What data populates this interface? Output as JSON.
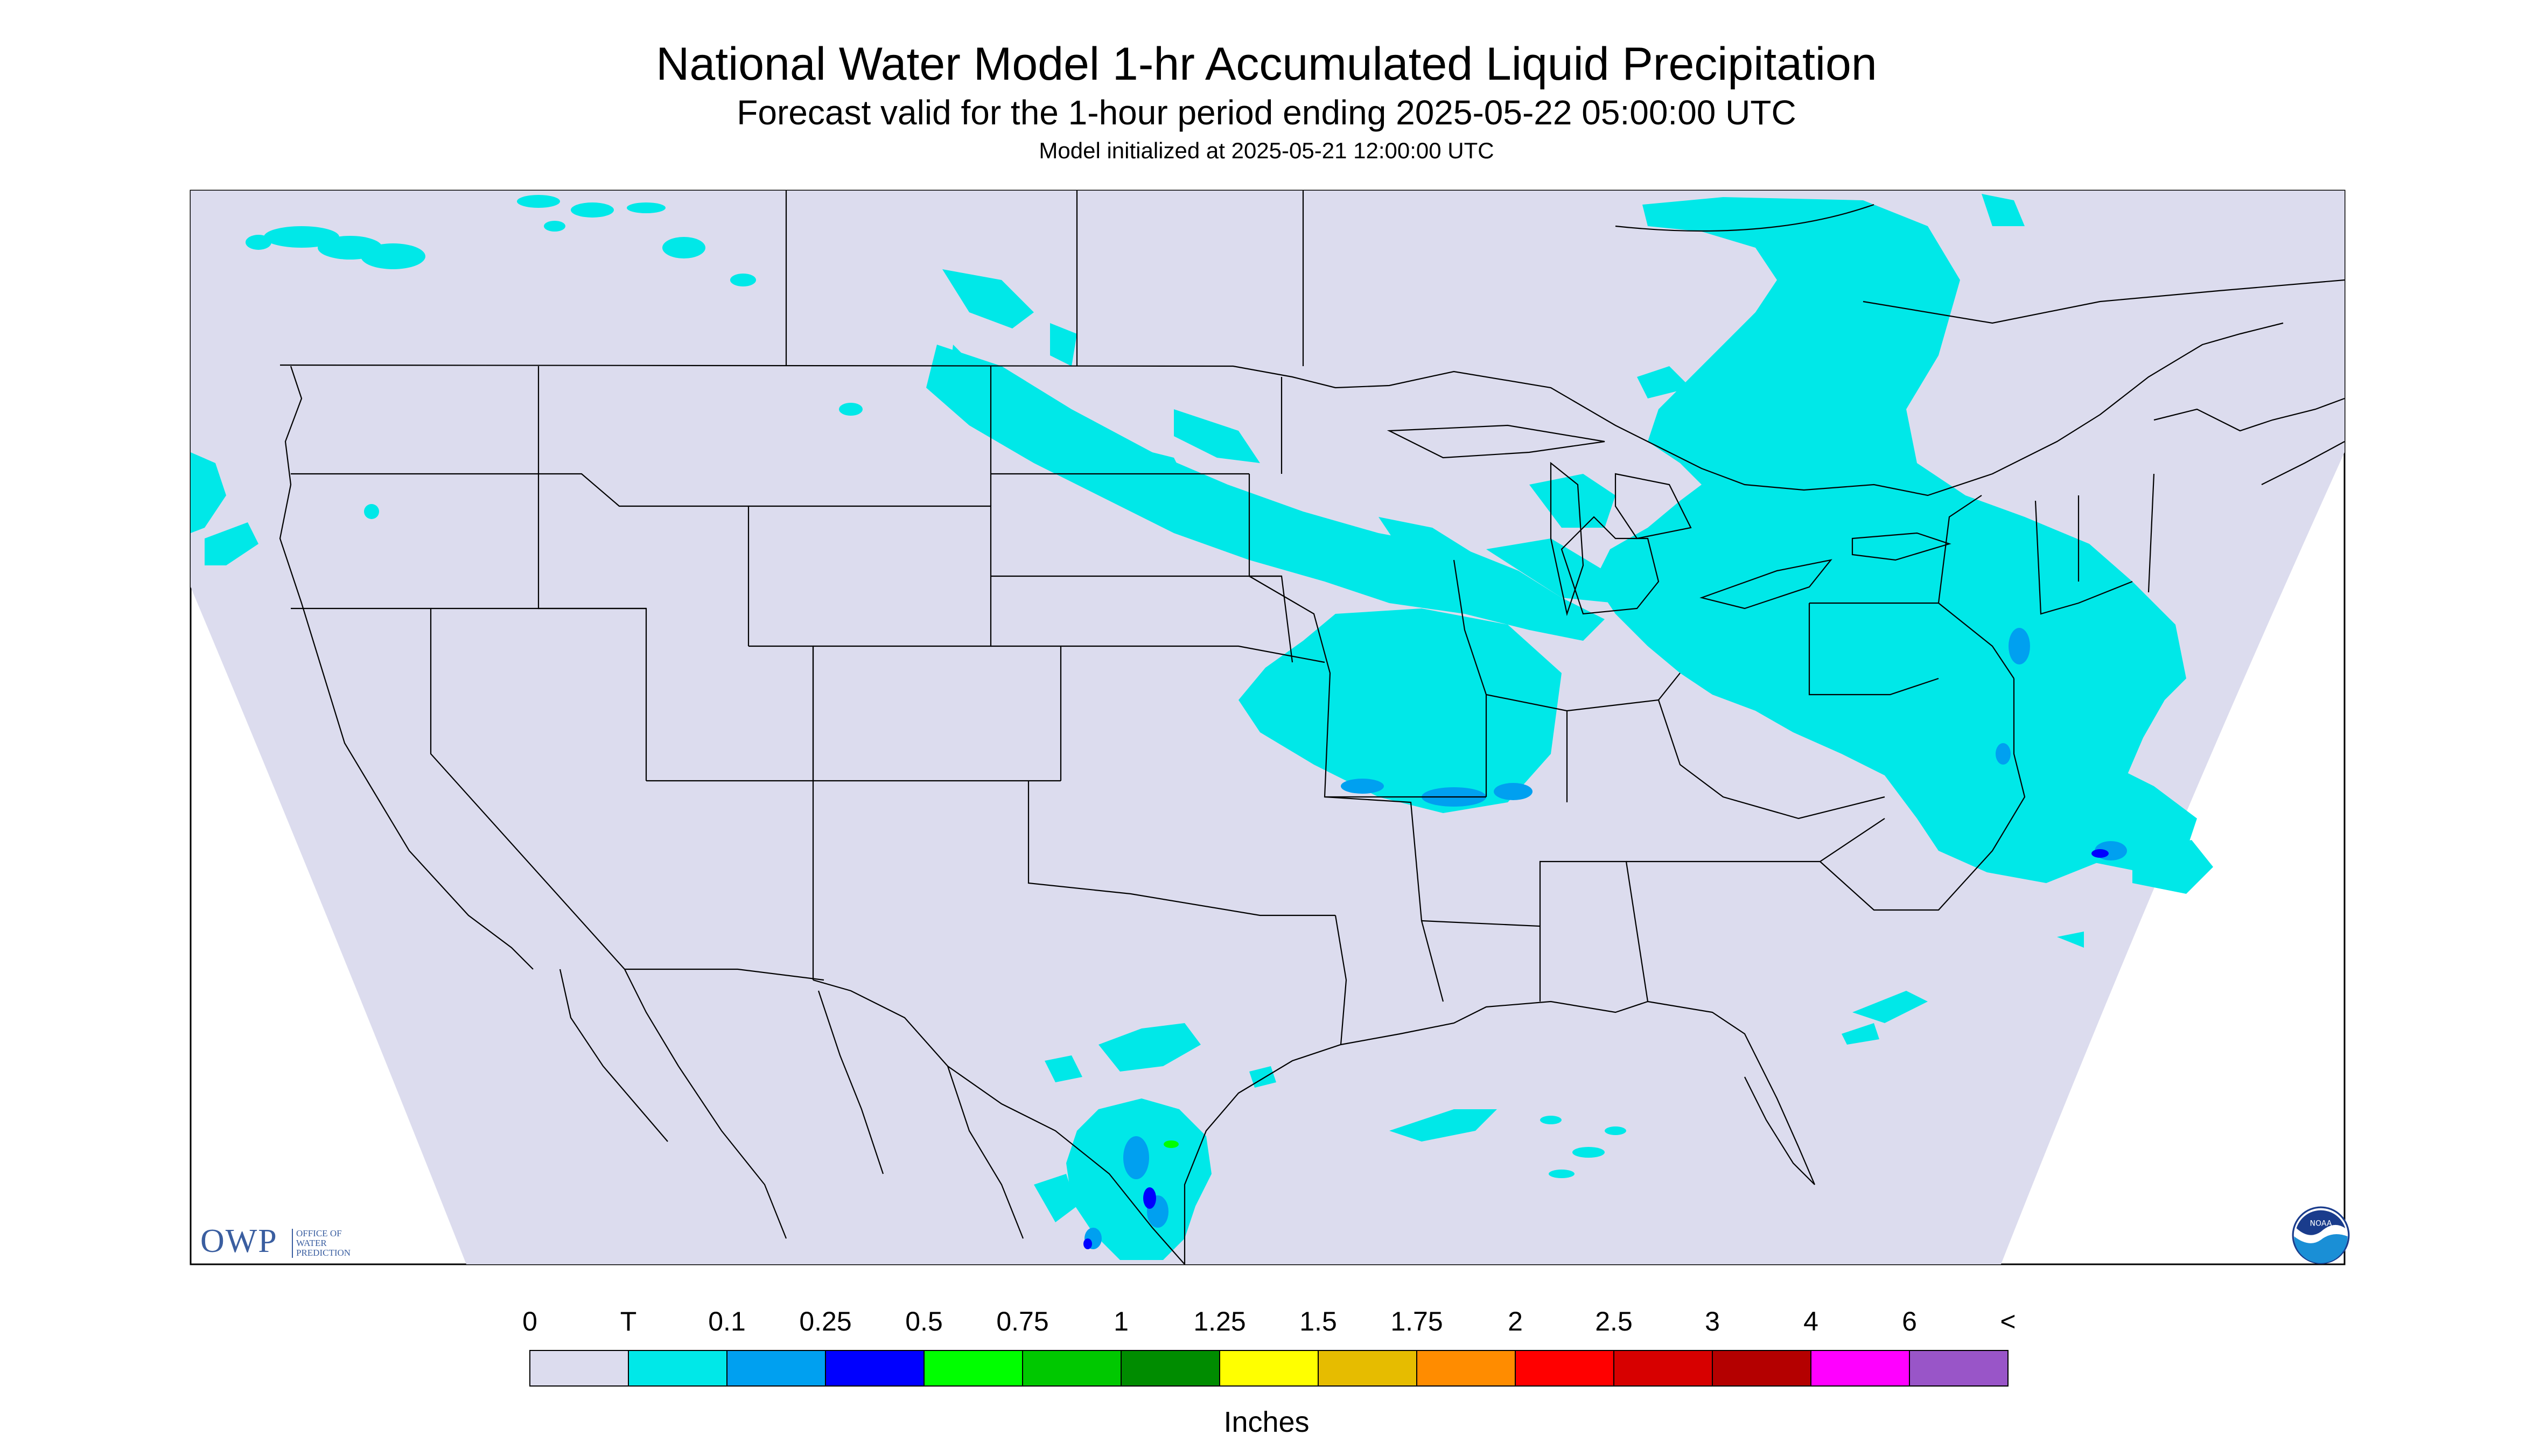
{
  "title": "National Water Model 1-hr Accumulated Liquid Precipitation",
  "subtitle": "Forecast valid for the 1-hour period ending 2025-05-22 05:00:00 UTC",
  "init_line": "Model initialized at 2025-05-21 12:00:00 UTC",
  "colorbar": {
    "unit_label": "Inches",
    "tick_labels": [
      "0",
      "T",
      "0.1",
      "0.25",
      "0.5",
      "0.75",
      "1",
      "1.25",
      "1.5",
      "1.75",
      "2",
      "2.5",
      "3",
      "4",
      "6",
      "<"
    ],
    "colors": [
      "#dcdcee",
      "#00e8e8",
      "#00a0f0",
      "#0000ff",
      "#00ff00",
      "#00c800",
      "#008c00",
      "#ffff00",
      "#e6bc00",
      "#ff8c00",
      "#ff0000",
      "#d70000",
      "#b40000",
      "#ff00ff",
      "#9955c8"
    ]
  },
  "logos": {
    "owp_mark": "OWP",
    "owp_lines": [
      "OFFICE OF",
      "WATER",
      "PREDICTION"
    ],
    "noaa_text": "NOAA"
  },
  "map": {
    "background_color": "#dcdcee",
    "boundary_color": "#000000",
    "precip_colors": {
      "trace": "#00e8e8",
      "light": "#00a0f0",
      "moderate": "#0000ff",
      "heavy": "#00ff00"
    }
  }
}
